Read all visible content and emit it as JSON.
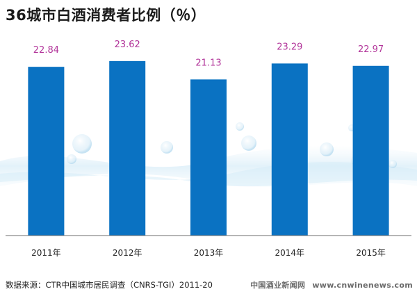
{
  "title": "36城市白酒消费者比例（％）",
  "chart_data": {
    "type": "bar",
    "categories": [
      "2011年",
      "2012年",
      "2013年",
      "2014年",
      "2015年"
    ],
    "values": [
      22.84,
      23.62,
      21.13,
      23.29,
      22.97
    ],
    "data_labels": [
      "22.84",
      "23.62",
      "21.13",
      "23.29",
      "22.97"
    ],
    "bar_color": "#0a72c2",
    "label_color": "#b2359a",
    "ylim": [
      0,
      25.3
    ],
    "grid": false,
    "legend": "none"
  },
  "source_text": "数据来源：CTR中国城市居民调查（CNRS-TGI）2011-20",
  "watermark": {
    "cn": "中国酒业新闻网",
    "url": "www.cnwinenews.com"
  }
}
